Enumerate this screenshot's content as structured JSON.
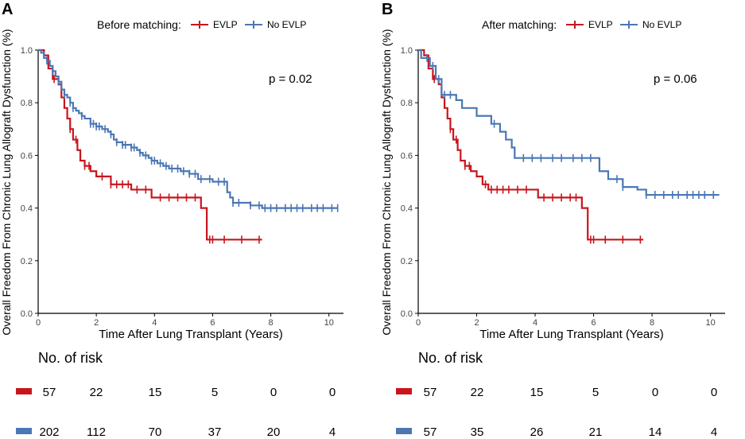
{
  "chart_data": [
    {
      "type": "line",
      "panel_label": "A",
      "legend_title": "Before matching:",
      "p_value_text": "p = 0.02",
      "xlabel": "Time After Lung Transplant (Years)",
      "ylabel": "Overall Freedom From Chronic Lung Allograft Dysfunction (%)",
      "xlim": [
        0,
        10.5
      ],
      "ylim": [
        0,
        1.0
      ],
      "x_ticks": [
        "0",
        "2",
        "4",
        "6",
        "8",
        "10"
      ],
      "y_ticks": [
        "0.0",
        "0.2",
        "0.4",
        "0.6",
        "0.8",
        "1.0"
      ],
      "series": [
        {
          "name": "EVLP",
          "color": "#c8161d",
          "steps": [
            [
              0,
              1.0
            ],
            [
              0.2,
              0.98
            ],
            [
              0.35,
              0.93
            ],
            [
              0.5,
              0.89
            ],
            [
              0.7,
              0.87
            ],
            [
              0.8,
              0.82
            ],
            [
              0.9,
              0.78
            ],
            [
              1.0,
              0.74
            ],
            [
              1.1,
              0.7
            ],
            [
              1.2,
              0.66
            ],
            [
              1.35,
              0.62
            ],
            [
              1.45,
              0.58
            ],
            [
              1.6,
              0.56
            ],
            [
              1.8,
              0.54
            ],
            [
              2.0,
              0.52
            ],
            [
              2.5,
              0.49
            ],
            [
              3.2,
              0.47
            ],
            [
              3.9,
              0.44
            ],
            [
              5.6,
              0.4
            ],
            [
              5.8,
              0.28
            ],
            [
              7.7,
              0.28
            ]
          ],
          "censor_times": [
            0.55,
            1.1,
            1.3,
            1.6,
            1.75,
            2.2,
            2.5,
            2.7,
            2.9,
            3.1,
            3.4,
            3.7,
            4.2,
            4.5,
            4.8,
            5.1,
            5.4,
            5.9,
            6.0,
            6.4,
            7.0,
            7.6
          ]
        },
        {
          "name": "No EVLP",
          "color": "#4b77b4",
          "steps": [
            [
              0,
              1.0
            ],
            [
              0.1,
              0.99
            ],
            [
              0.2,
              0.97
            ],
            [
              0.3,
              0.96
            ],
            [
              0.4,
              0.94
            ],
            [
              0.5,
              0.92
            ],
            [
              0.6,
              0.9
            ],
            [
              0.7,
              0.88
            ],
            [
              0.8,
              0.85
            ],
            [
              0.9,
              0.83
            ],
            [
              1.0,
              0.82
            ],
            [
              1.1,
              0.8
            ],
            [
              1.2,
              0.78
            ],
            [
              1.3,
              0.77
            ],
            [
              1.4,
              0.76
            ],
            [
              1.5,
              0.75
            ],
            [
              1.6,
              0.74
            ],
            [
              1.8,
              0.72
            ],
            [
              2.0,
              0.71
            ],
            [
              2.2,
              0.7
            ],
            [
              2.4,
              0.69
            ],
            [
              2.5,
              0.68
            ],
            [
              2.6,
              0.66
            ],
            [
              2.7,
              0.65
            ],
            [
              2.9,
              0.64
            ],
            [
              3.2,
              0.63
            ],
            [
              3.4,
              0.62
            ],
            [
              3.5,
              0.61
            ],
            [
              3.6,
              0.6
            ],
            [
              3.8,
              0.59
            ],
            [
              3.9,
              0.58
            ],
            [
              4.1,
              0.57
            ],
            [
              4.3,
              0.56
            ],
            [
              4.5,
              0.55
            ],
            [
              4.9,
              0.54
            ],
            [
              5.0,
              0.54
            ],
            [
              5.2,
              0.53
            ],
            [
              5.5,
              0.51
            ],
            [
              6.0,
              0.5
            ],
            [
              6.5,
              0.46
            ],
            [
              6.6,
              0.44
            ],
            [
              6.7,
              0.42
            ],
            [
              6.9,
              0.42
            ],
            [
              7.3,
              0.41
            ],
            [
              7.7,
              0.4
            ],
            [
              10.3,
              0.4
            ]
          ],
          "censor_times": [
            0.3,
            0.5,
            0.7,
            0.9,
            1.1,
            1.2,
            1.5,
            1.8,
            1.9,
            2.0,
            2.1,
            2.3,
            2.5,
            2.7,
            2.9,
            3.0,
            3.2,
            3.3,
            3.5,
            3.7,
            3.9,
            4.0,
            4.2,
            4.4,
            4.6,
            4.8,
            5.0,
            5.2,
            5.4,
            5.6,
            5.9,
            6.2,
            6.4,
            6.7,
            6.9,
            7.3,
            7.6,
            7.8,
            8.0,
            8.2,
            8.5,
            8.7,
            8.9,
            9.1,
            9.4,
            9.6,
            9.8,
            10.1,
            10.3
          ]
        }
      ]
    },
    {
      "type": "line",
      "panel_label": "B",
      "legend_title": "After matching:",
      "p_value_text": "p = 0.06",
      "xlabel": "Time After Lung Transplant (Years)",
      "ylabel": "Overall Freedom From Chronic Lung Allograft Dysfunction (%)",
      "xlim": [
        0,
        10.5
      ],
      "ylim": [
        0,
        1.0
      ],
      "x_ticks": [
        "0",
        "2",
        "4",
        "6",
        "8",
        "10"
      ],
      "y_ticks": [
        "0.0",
        "0.2",
        "0.4",
        "0.6",
        "0.8",
        "1.0"
      ],
      "series": [
        {
          "name": "EVLP",
          "color": "#c8161d",
          "steps": [
            [
              0,
              1.0
            ],
            [
              0.2,
              0.98
            ],
            [
              0.35,
              0.93
            ],
            [
              0.5,
              0.89
            ],
            [
              0.7,
              0.87
            ],
            [
              0.8,
              0.82
            ],
            [
              0.9,
              0.78
            ],
            [
              1.0,
              0.74
            ],
            [
              1.1,
              0.7
            ],
            [
              1.2,
              0.66
            ],
            [
              1.35,
              0.62
            ],
            [
              1.45,
              0.58
            ],
            [
              1.6,
              0.56
            ],
            [
              1.8,
              0.54
            ],
            [
              2.0,
              0.52
            ],
            [
              2.2,
              0.49
            ],
            [
              2.4,
              0.47
            ],
            [
              4.1,
              0.44
            ],
            [
              5.6,
              0.4
            ],
            [
              5.8,
              0.28
            ],
            [
              7.7,
              0.28
            ]
          ],
          "censor_times": [
            0.55,
            1.1,
            1.3,
            1.6,
            1.75,
            2.3,
            2.5,
            2.7,
            2.9,
            3.1,
            3.4,
            3.7,
            4.3,
            4.6,
            4.9,
            5.2,
            5.4,
            5.9,
            6.0,
            6.4,
            7.0,
            7.6
          ]
        },
        {
          "name": "No EVLP",
          "color": "#4b77b4",
          "steps": [
            [
              0,
              1.0
            ],
            [
              0.1,
              0.97
            ],
            [
              0.4,
              0.94
            ],
            [
              0.6,
              0.89
            ],
            [
              0.8,
              0.83
            ],
            [
              1.3,
              0.81
            ],
            [
              1.5,
              0.78
            ],
            [
              2.0,
              0.75
            ],
            [
              2.5,
              0.72
            ],
            [
              2.8,
              0.69
            ],
            [
              3.0,
              0.66
            ],
            [
              3.2,
              0.63
            ],
            [
              3.3,
              0.59
            ],
            [
              6.0,
              0.59
            ],
            [
              6.2,
              0.54
            ],
            [
              6.5,
              0.51
            ],
            [
              7.0,
              0.48
            ],
            [
              7.5,
              0.47
            ],
            [
              7.8,
              0.45
            ],
            [
              10.3,
              0.45
            ]
          ],
          "censor_times": [
            0.3,
            0.5,
            0.7,
            0.9,
            1.1,
            2.6,
            3.6,
            3.9,
            4.2,
            4.6,
            4.9,
            5.3,
            5.6,
            5.9,
            6.8,
            7.0,
            7.8,
            8.1,
            8.4,
            8.7,
            8.9,
            9.2,
            9.4,
            9.6,
            9.8,
            10.1
          ]
        }
      ]
    }
  ],
  "risk_tables": [
    {
      "title": "No. of risk",
      "rows": [
        {
          "group": "EVLP",
          "color": "#c8161d",
          "counts": [
            "57",
            "22",
            "15",
            "5",
            "0",
            "0"
          ]
        },
        {
          "group": "No EVLP",
          "color": "#4b77b4",
          "counts": [
            "202",
            "112",
            "70",
            "37",
            "20",
            "4"
          ]
        }
      ]
    },
    {
      "title": "No. of risk",
      "rows": [
        {
          "group": "EVLP",
          "color": "#c8161d",
          "counts": [
            "57",
            "22",
            "15",
            "5",
            "0",
            "0"
          ]
        },
        {
          "group": "No EVLP",
          "color": "#4b77b4",
          "counts": [
            "57",
            "35",
            "26",
            "21",
            "14",
            "4"
          ]
        }
      ]
    }
  ]
}
